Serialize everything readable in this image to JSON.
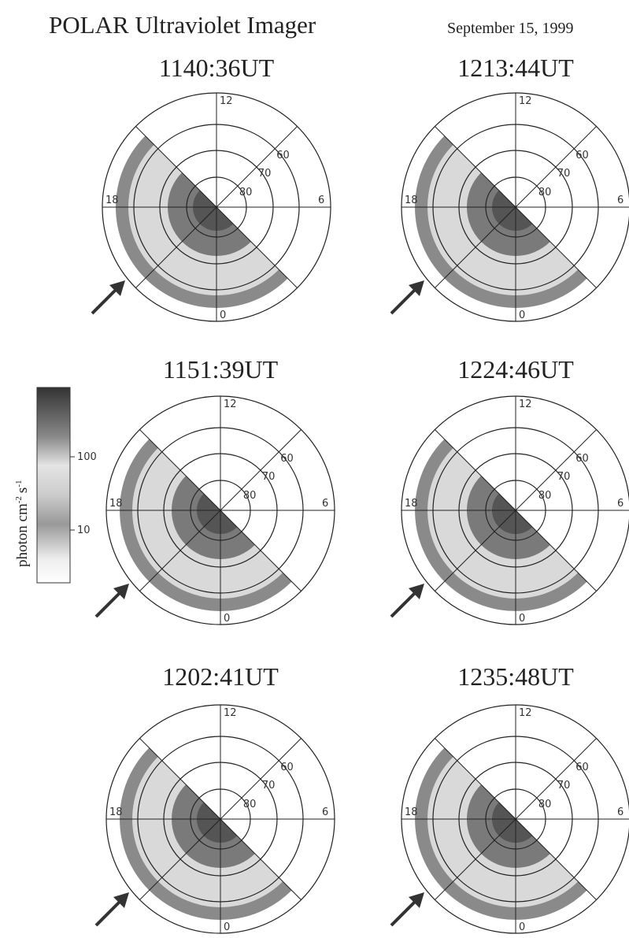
{
  "header": {
    "title": "POLAR Ultraviolet Imager",
    "date": "September 15, 1999"
  },
  "grid_labels": {
    "noon": "12",
    "dawn": "6",
    "dusk": "18",
    "midnight": "0",
    "ring60": "60",
    "ring70": "70",
    "ring80": "80"
  },
  "colorbar": {
    "label": {
      "base1": "photon cm",
      "exp1": "-2",
      "base2": "s",
      "exp2": "-1"
    },
    "ticks": [
      "100",
      "10"
    ]
  },
  "panels": [
    {
      "time": "1140:36UT"
    },
    {
      "time": "1151:39UT"
    },
    {
      "time": "1202:41UT"
    },
    {
      "time": "1213:44UT"
    },
    {
      "time": "1224:46UT"
    },
    {
      "time": "1235:48UT"
    }
  ]
}
